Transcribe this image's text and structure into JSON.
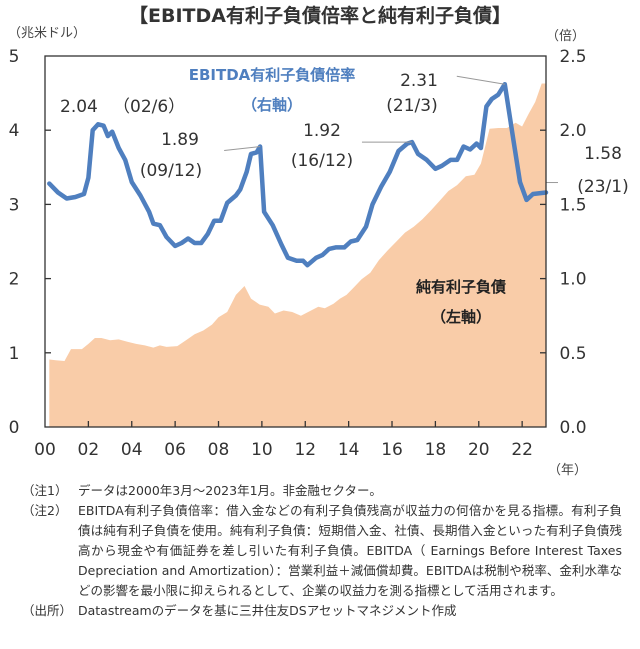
{
  "chart_data": {
    "type": "area+line",
    "title": "【EBITDA有利子負債倍率と純有利子負債】",
    "left_axis": {
      "unit_label": "（兆米ドル）",
      "range": [
        0,
        5
      ],
      "ticks": [
        "0",
        "1",
        "2",
        "3",
        "4",
        "5"
      ]
    },
    "right_axis": {
      "unit_label": "（倍）",
      "range": [
        0,
        2.5
      ],
      "ticks": [
        "0.0",
        "0.5",
        "1.0",
        "1.5",
        "2.0",
        "2.5"
      ]
    },
    "x_axis": {
      "unit_label": "（年）",
      "range": [
        2000,
        2023.1
      ],
      "ticks": [
        "00",
        "02",
        "04",
        "06",
        "08",
        "10",
        "12",
        "14",
        "16",
        "18",
        "20",
        "22"
      ],
      "tick_years": [
        2000,
        2002,
        2004,
        2006,
        2008,
        2010,
        2012,
        2014,
        2016,
        2018,
        2020,
        2022
      ]
    },
    "grid": false,
    "series": [
      {
        "name": "純有利子負債",
        "label_lines": [
          "純有利子負債",
          "（左軸）"
        ],
        "axis": "left",
        "type": "area",
        "color": "#f9cca8",
        "points": [
          [
            2000.2,
            0.91
          ],
          [
            2000.5,
            0.9
          ],
          [
            2000.9,
            0.89
          ],
          [
            2001.2,
            1.05
          ],
          [
            2001.7,
            1.05
          ],
          [
            2002.0,
            1.12
          ],
          [
            2002.3,
            1.2
          ],
          [
            2002.6,
            1.2
          ],
          [
            2003.0,
            1.17
          ],
          [
            2003.4,
            1.18
          ],
          [
            2003.8,
            1.15
          ],
          [
            2004.2,
            1.12
          ],
          [
            2004.6,
            1.1
          ],
          [
            2005.0,
            1.07
          ],
          [
            2005.3,
            1.1
          ],
          [
            2005.6,
            1.08
          ],
          [
            2006.1,
            1.09
          ],
          [
            2006.5,
            1.17
          ],
          [
            2006.9,
            1.25
          ],
          [
            2007.3,
            1.3
          ],
          [
            2007.7,
            1.38
          ],
          [
            2008.0,
            1.48
          ],
          [
            2008.4,
            1.55
          ],
          [
            2008.8,
            1.78
          ],
          [
            2009.2,
            1.9
          ],
          [
            2009.5,
            1.73
          ],
          [
            2009.9,
            1.65
          ],
          [
            2010.3,
            1.62
          ],
          [
            2010.6,
            1.53
          ],
          [
            2011.0,
            1.57
          ],
          [
            2011.4,
            1.55
          ],
          [
            2011.8,
            1.5
          ],
          [
            2012.2,
            1.56
          ],
          [
            2012.6,
            1.62
          ],
          [
            2012.9,
            1.6
          ],
          [
            2013.3,
            1.66
          ],
          [
            2013.6,
            1.73
          ],
          [
            2013.9,
            1.78
          ],
          [
            2014.2,
            1.87
          ],
          [
            2014.6,
            1.99
          ],
          [
            2015.0,
            2.08
          ],
          [
            2015.4,
            2.25
          ],
          [
            2015.8,
            2.38
          ],
          [
            2016.2,
            2.5
          ],
          [
            2016.6,
            2.62
          ],
          [
            2017.0,
            2.7
          ],
          [
            2017.4,
            2.8
          ],
          [
            2017.8,
            2.92
          ],
          [
            2018.2,
            3.05
          ],
          [
            2018.6,
            3.18
          ],
          [
            2019.0,
            3.26
          ],
          [
            2019.4,
            3.38
          ],
          [
            2019.8,
            3.4
          ],
          [
            2020.1,
            3.55
          ],
          [
            2020.5,
            4.02
          ],
          [
            2020.9,
            4.03
          ],
          [
            2021.3,
            4.03
          ],
          [
            2021.7,
            4.1
          ],
          [
            2022.0,
            4.05
          ],
          [
            2022.3,
            4.22
          ],
          [
            2022.6,
            4.38
          ],
          [
            2022.9,
            4.63
          ],
          [
            2023.1,
            4.63
          ]
        ]
      },
      {
        "name": "EBITDA有利子負債倍率",
        "label_lines": [
          "EBITDA有利子負債倍率",
          "（右軸）"
        ],
        "axis": "right",
        "type": "line",
        "color": "#4f7fbf",
        "points": [
          [
            2000.2,
            1.64
          ],
          [
            2000.6,
            1.58
          ],
          [
            2001.0,
            1.54
          ],
          [
            2001.4,
            1.55
          ],
          [
            2001.8,
            1.57
          ],
          [
            2002.0,
            1.68
          ],
          [
            2002.2,
            2.0
          ],
          [
            2002.45,
            2.04
          ],
          [
            2002.7,
            2.03
          ],
          [
            2002.9,
            1.96
          ],
          [
            2003.1,
            1.99
          ],
          [
            2003.4,
            1.88
          ],
          [
            2003.7,
            1.8
          ],
          [
            2004.0,
            1.65
          ],
          [
            2004.4,
            1.56
          ],
          [
            2004.8,
            1.45
          ],
          [
            2005.0,
            1.37
          ],
          [
            2005.3,
            1.36
          ],
          [
            2005.6,
            1.28
          ],
          [
            2006.0,
            1.22
          ],
          [
            2006.3,
            1.24
          ],
          [
            2006.6,
            1.27
          ],
          [
            2006.9,
            1.24
          ],
          [
            2007.2,
            1.24
          ],
          [
            2007.5,
            1.3
          ],
          [
            2007.8,
            1.39
          ],
          [
            2008.1,
            1.39
          ],
          [
            2008.4,
            1.51
          ],
          [
            2008.8,
            1.56
          ],
          [
            2009.0,
            1.6
          ],
          [
            2009.3,
            1.72
          ],
          [
            2009.5,
            1.84
          ],
          [
            2009.75,
            1.85
          ],
          [
            2009.92,
            1.89
          ],
          [
            2010.1,
            1.45
          ],
          [
            2010.5,
            1.36
          ],
          [
            2010.9,
            1.23
          ],
          [
            2011.2,
            1.14
          ],
          [
            2011.6,
            1.12
          ],
          [
            2011.9,
            1.12
          ],
          [
            2012.1,
            1.09
          ],
          [
            2012.5,
            1.14
          ],
          [
            2012.8,
            1.16
          ],
          [
            2013.1,
            1.2
          ],
          [
            2013.4,
            1.21
          ],
          [
            2013.8,
            1.21
          ],
          [
            2014.1,
            1.25
          ],
          [
            2014.4,
            1.26
          ],
          [
            2014.8,
            1.35
          ],
          [
            2015.1,
            1.5
          ],
          [
            2015.5,
            1.62
          ],
          [
            2015.9,
            1.72
          ],
          [
            2016.3,
            1.86
          ],
          [
            2016.7,
            1.91
          ],
          [
            2016.92,
            1.92
          ],
          [
            2017.2,
            1.84
          ],
          [
            2017.6,
            1.8
          ],
          [
            2018.0,
            1.74
          ],
          [
            2018.3,
            1.76
          ],
          [
            2018.7,
            1.8
          ],
          [
            2019.0,
            1.8
          ],
          [
            2019.3,
            1.89
          ],
          [
            2019.6,
            1.87
          ],
          [
            2019.9,
            1.91
          ],
          [
            2020.1,
            1.88
          ],
          [
            2020.35,
            2.16
          ],
          [
            2020.6,
            2.21
          ],
          [
            2020.9,
            2.24
          ],
          [
            2021.2,
            2.31
          ],
          [
            2021.6,
            1.93
          ],
          [
            2021.9,
            1.65
          ],
          [
            2022.2,
            1.53
          ],
          [
            2022.5,
            1.57
          ],
          [
            2023.1,
            1.58
          ]
        ]
      }
    ],
    "annotations": [
      {
        "id": "peak-2002",
        "value": "2.04",
        "date": "（02/6）",
        "year": 2002.45,
        "ratio": 2.04
      },
      {
        "id": "peak-2009",
        "value": "1.89",
        "date": "(09/12)",
        "year": 2009.92,
        "ratio": 1.89
      },
      {
        "id": "peak-2016",
        "value": "1.92",
        "date": "(16/12)",
        "year": 2016.92,
        "ratio": 1.92
      },
      {
        "id": "peak-2021",
        "value": "2.31",
        "date": "(21/3)",
        "year": 2021.2,
        "ratio": 2.31
      },
      {
        "id": "latest-2023",
        "value": "1.58",
        "date": "(23/1)",
        "year": 2023.1,
        "ratio": 1.58
      }
    ]
  },
  "notes": [
    {
      "head": "（注1）",
      "body": "データは2000年3月～2023年1月。非金融セクター。"
    },
    {
      "head": "（注2）",
      "body": "EBITDA有利子負債倍率：借入金などの有利子負債残高が収益力の何倍かを見る指標。有利子負債は純有利子負債を使用。純有利子負債：短期借入金、社債、長期借入金といった有利子負債残高から現金や有価証券を差し引いた有利子負債。EBITDA（ Earnings Before Interest Taxes Depreciation and Amortization）：営業利益＋減価償却費。EBITDAは税制や税率、金利水準などの影響を最小限に抑えられるとして、企業の収益力を測る指標として活用されます。"
    },
    {
      "head": "（出所）",
      "body": "Datastreamのデータを基に三井住友DSアセットマネジメント作成"
    }
  ]
}
